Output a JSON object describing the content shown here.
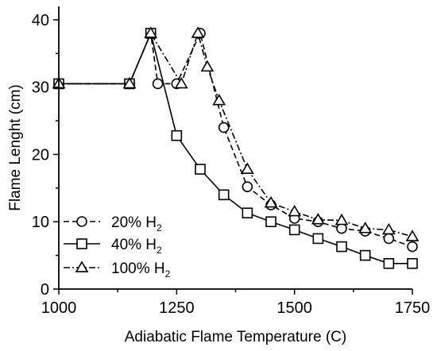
{
  "chart_data": {
    "type": "line",
    "title": "",
    "xlabel": "Adiabatic Flame Temperature (C)",
    "ylabel": "Flame  Lenght (cm)",
    "xlim": [
      1000,
      1750
    ],
    "ylim": [
      0,
      42
    ],
    "xticks": [
      1000,
      1250,
      1500,
      1750
    ],
    "yticks": [
      0,
      10,
      20,
      30,
      40
    ],
    "x_tick_labels": [
      "1000",
      "1250",
      "1500",
      "1750"
    ],
    "y_tick_labels": [
      "0",
      "10",
      "20",
      "30",
      "40"
    ],
    "grid": false,
    "legend_position": "bottom-left",
    "series": [
      {
        "name": "20% H",
        "name_subscript": "2",
        "marker": "circle",
        "line_style": "dashed",
        "color": "#000000",
        "points": [
          [
            1000,
            30.5
          ],
          [
            1150,
            30.5
          ],
          [
            1195,
            38
          ],
          [
            1210,
            30.5
          ],
          [
            1250,
            30.5
          ],
          [
            1300,
            38
          ],
          [
            1350,
            24
          ],
          [
            1400,
            15.2
          ],
          [
            1450,
            12.5
          ],
          [
            1500,
            10.5
          ],
          [
            1550,
            10
          ],
          [
            1600,
            9
          ],
          [
            1650,
            8.6
          ],
          [
            1700,
            7.5
          ],
          [
            1750,
            6.3
          ]
        ]
      },
      {
        "name": "40% H",
        "name_subscript": "2",
        "marker": "square",
        "line_style": "solid",
        "color": "#000000",
        "points": [
          [
            1000,
            30.5
          ],
          [
            1150,
            30.5
          ],
          [
            1195,
            38
          ],
          [
            1250,
            22.8
          ],
          [
            1300,
            17.8
          ],
          [
            1350,
            14
          ],
          [
            1400,
            11.3
          ],
          [
            1450,
            10
          ],
          [
            1500,
            8.8
          ],
          [
            1550,
            7.5
          ],
          [
            1600,
            6.3
          ],
          [
            1650,
            5
          ],
          [
            1700,
            3.8
          ],
          [
            1750,
            3.8
          ]
        ]
      },
      {
        "name": "100% H",
        "name_subscript": "2",
        "marker": "triangle",
        "line_style": "dash-dot",
        "color": "#000000",
        "points": [
          [
            1000,
            30.5
          ],
          [
            1150,
            30.5
          ],
          [
            1195,
            38
          ],
          [
            1260,
            30.5
          ],
          [
            1295,
            38
          ],
          [
            1315,
            33
          ],
          [
            1340,
            28
          ],
          [
            1400,
            17.8
          ],
          [
            1450,
            12.8
          ],
          [
            1500,
            11.5
          ],
          [
            1550,
            10.3
          ],
          [
            1600,
            10.2
          ],
          [
            1650,
            9
          ],
          [
            1700,
            8.8
          ],
          [
            1750,
            7.8
          ]
        ]
      }
    ]
  }
}
